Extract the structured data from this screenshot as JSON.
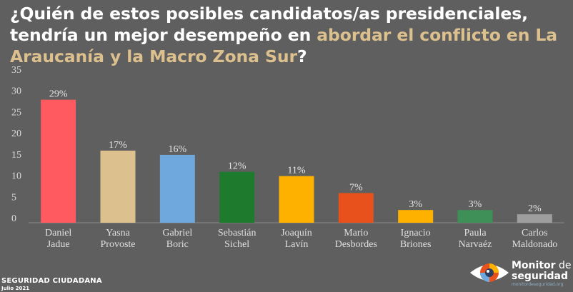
{
  "title": {
    "part1": "¿Quién de estos posibles candidatos/as presidenciales,",
    "part2": "tendría un mejor desempeño en ",
    "highlight": "abordar el conflicto en La Araucanía y la Macro Zona Sur",
    "end": "?"
  },
  "footer": {
    "org": "SEGURIDAD CIUDADANA",
    "date": "Julio 2021"
  },
  "brand": {
    "name_bold": "Monitor",
    "name_light": " de",
    "name_line2": "seguridad",
    "url": "monitordeseguridad.org"
  },
  "colors": {
    "background": "#5f5f5f",
    "highlight": "#dcc08e"
  },
  "chart_data": {
    "type": "bar",
    "categories": [
      [
        "Daniel",
        "Jadue"
      ],
      [
        "Yasna",
        "Provoste"
      ],
      [
        "Gabriel",
        "Boric"
      ],
      [
        "Sebastián",
        "Sichel"
      ],
      [
        "Joaquín",
        "Lavín"
      ],
      [
        "Mario",
        "Desbordes"
      ],
      [
        "Ignacio",
        "Briones"
      ],
      [
        "Paula",
        "Narvaéz"
      ],
      [
        "Carlos",
        "Maldonado"
      ]
    ],
    "values": [
      29,
      17,
      16,
      12,
      11,
      7,
      3,
      3,
      2
    ],
    "labels": [
      "29%",
      "17%",
      "16%",
      "12%",
      "11%",
      "7%",
      "3%",
      "3%",
      "2%"
    ],
    "colors": [
      "#ff5a5f",
      "#dcc08e",
      "#6fa8dc",
      "#1e7b2e",
      "#ffb100",
      "#e8511b",
      "#ffb100",
      "#3f8f58",
      "#9e9e9e"
    ],
    "ylim": [
      0,
      35
    ],
    "yticks": [
      0,
      5,
      10,
      15,
      20,
      25,
      30,
      35
    ],
    "grid": false
  }
}
